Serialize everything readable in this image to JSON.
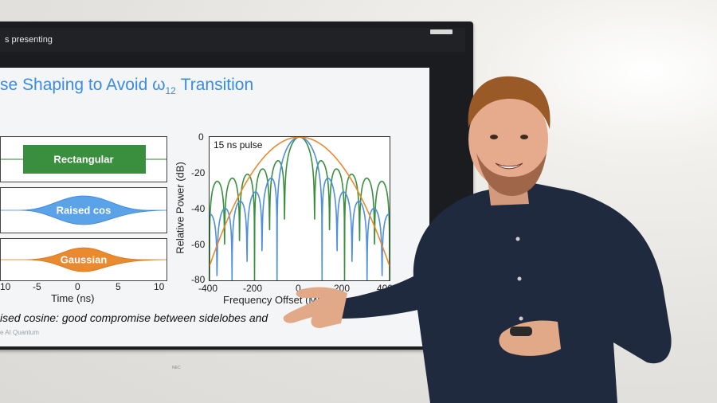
{
  "screen": {
    "header_text": "s presenting",
    "brand": "NEC"
  },
  "slide": {
    "title_main": "se Shaping to Avoid ω",
    "title_sub": "12",
    "title_end": " Transition",
    "pulses": [
      {
        "label": "Rectangular",
        "color": "#3a8f3e"
      },
      {
        "label": "Raised cos",
        "color": "#5aa3e8"
      },
      {
        "label": "Gaussian",
        "color": "#e98a2f"
      }
    ],
    "time_ticks": [
      "10",
      "-5",
      "0",
      "5",
      "10"
    ],
    "time_label": "Time (ns)",
    "plot_note": "15 ns pulse",
    "y_label": "Relative Power (dB)",
    "y_ticks": [
      "0",
      "-20",
      "-40",
      "-60",
      "-80"
    ],
    "x_ticks": [
      "-400",
      "-200",
      "0",
      "200",
      "400"
    ],
    "x_label": "Frequency Offset (MHz)",
    "caption": "ised cosine: good compromise between sidelobes and",
    "footer": "e AI Quantum"
  }
}
